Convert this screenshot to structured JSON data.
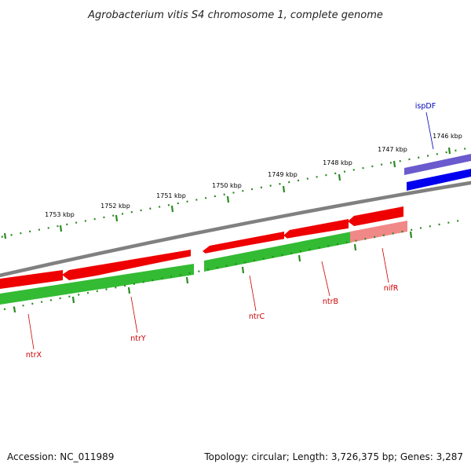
{
  "title": "Agrobacterium vitis S4 chromosome 1, complete genome",
  "footer": {
    "accession": "Accession: NC_011989",
    "summary": "Topology: circular; Length: 3,726,375 bp; Genes: 3,287"
  },
  "colors": {
    "backbone": "#808080",
    "tick": "#2a8a1f",
    "label_red": "#cc0000",
    "label_blue": "#0000bb",
    "gene_red": "#ee0000",
    "gene_red_light": "#f08888",
    "gene_green": "#33bb33",
    "gene_blue": "#0000ee",
    "gene_blue_light": "#6a5acd"
  },
  "ticks": [
    {
      "label": "1753 kbp"
    },
    {
      "label": "1752 kbp"
    },
    {
      "label": "1751 kbp"
    },
    {
      "label": "1750 kbp"
    },
    {
      "label": "1749 kbp"
    },
    {
      "label": "1748 kbp"
    },
    {
      "label": "1747 kbp"
    },
    {
      "label": "1746 kbp"
    }
  ],
  "genes": [
    {
      "name": "ntrX",
      "color": "red"
    },
    {
      "name": "ntrY",
      "color": "red"
    },
    {
      "name": "ntrC",
      "color": "red"
    },
    {
      "name": "ntrB",
      "color": "red"
    },
    {
      "name": "nifR",
      "color": "red"
    },
    {
      "name": "ispDF",
      "color": "blue"
    }
  ]
}
